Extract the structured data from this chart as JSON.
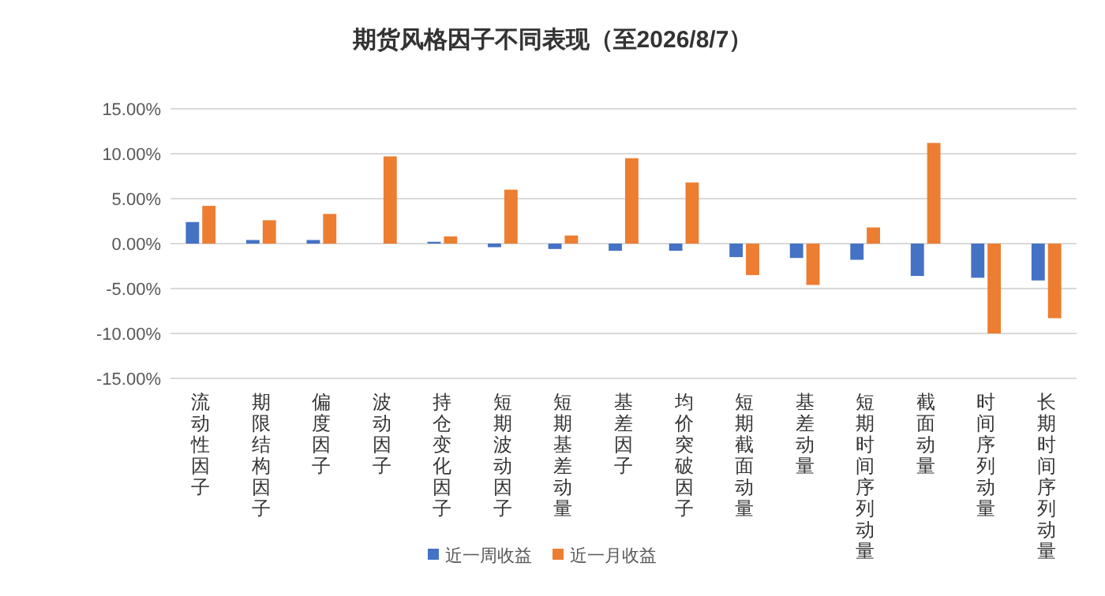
{
  "chart_data": {
    "type": "bar",
    "title": "期货风格因子不同表现（至2026/8/7）",
    "categories": [
      "流动性因子",
      "期限结构因子",
      "偏度因子",
      "波动因子",
      "持仓变化因子",
      "短期波动因子",
      "短期基差动量",
      "基差因子",
      "均价突破因子",
      "短期截面动量",
      "基差动量",
      "短期时间序列动量",
      "截面动量",
      "时间序列动量",
      "长期时间序列动量"
    ],
    "series": [
      {
        "name": "近一周收益",
        "color": "#4472c4",
        "values": [
          2.4,
          0.4,
          0.4,
          0,
          0.2,
          -0.4,
          -0.6,
          -0.8,
          -0.8,
          -1.5,
          -1.6,
          -1.8,
          -3.6,
          -3.8,
          -4.1
        ]
      },
      {
        "name": "近一月收益",
        "color": "#ed7d31",
        "values": [
          4.2,
          2.6,
          3.3,
          9.7,
          0.8,
          6.0,
          0.9,
          9.5,
          6.8,
          -3.5,
          -4.6,
          1.8,
          11.2,
          -10.0,
          -8.3
        ]
      }
    ],
    "ylim": [
      -15,
      15
    ],
    "yticks": [
      {
        "value": -15,
        "label": "-15.00%"
      },
      {
        "value": -10,
        "label": "-10.00%"
      },
      {
        "value": -5,
        "label": "-5.00%"
      },
      {
        "value": 0,
        "label": "0.00%"
      },
      {
        "value": 5,
        "label": "5.00%"
      },
      {
        "value": 10,
        "label": "10.00%"
      },
      {
        "value": 15,
        "label": "15.00%"
      }
    ],
    "grid": "y",
    "legend": "bottom"
  }
}
